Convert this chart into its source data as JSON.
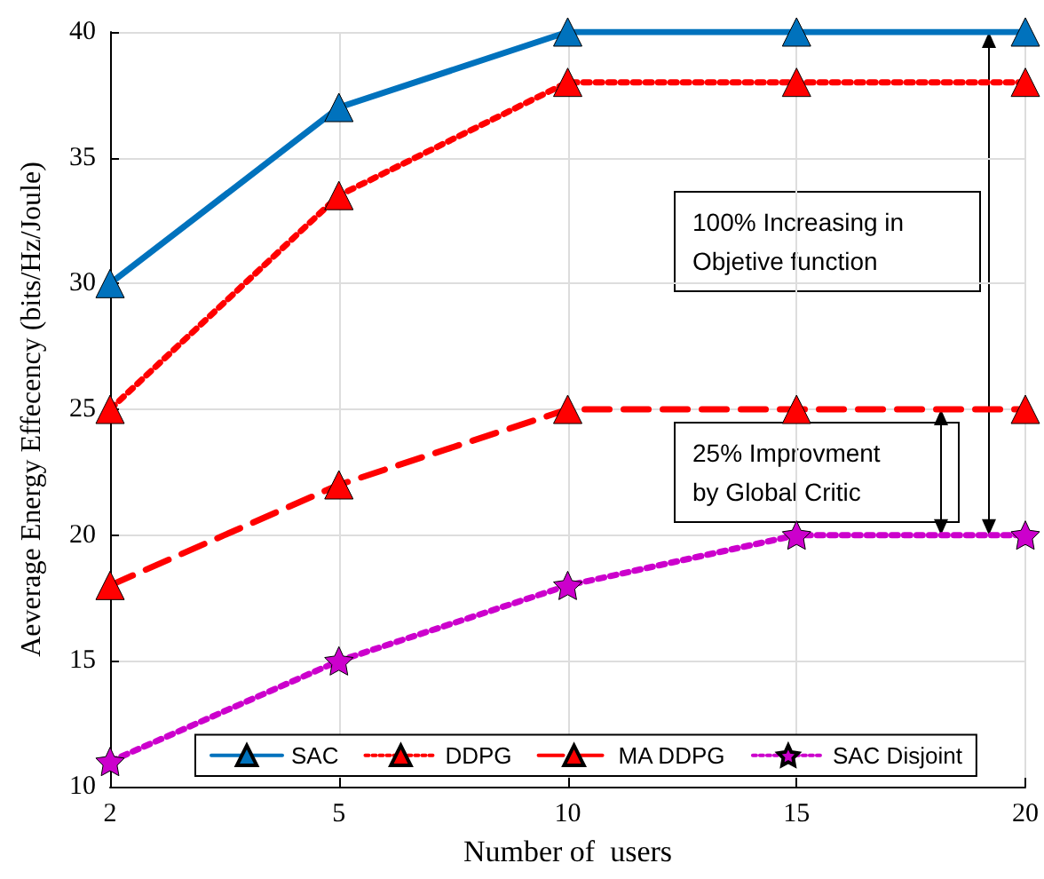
{
  "chart_data": {
    "type": "line",
    "xlabel": "Number of  users",
    "ylabel": "Aeverage Energy Effecency (bits/Hz/Joule)",
    "categories": [
      "2",
      "5",
      "10",
      "15",
      "20"
    ],
    "ylim": [
      10,
      40
    ],
    "yticks": [
      10,
      15,
      20,
      25,
      30,
      35,
      40
    ],
    "grid": true,
    "legend": "bottom",
    "series": [
      {
        "name": "SAC",
        "color": "#0072bd",
        "line_style": "solid",
        "marker": "triangle",
        "values": [
          30,
          37,
          40,
          40,
          40
        ]
      },
      {
        "name": "DDPG",
        "color": "#ff0000",
        "line_style": "dotted",
        "marker": "triangle",
        "values": [
          25,
          33.5,
          38,
          38,
          38
        ]
      },
      {
        "name": "MA DDPG",
        "color": "#ff0000",
        "line_style": "dashed",
        "marker": "triangle",
        "values": [
          18,
          22,
          25,
          25,
          25
        ]
      },
      {
        "name": "SAC Disjoint",
        "color": "#cc00cc",
        "line_style": "dotted",
        "marker": "star",
        "values": [
          11,
          15,
          18,
          20,
          20
        ]
      }
    ],
    "annotations": [
      "100% Increasing in Objetive function",
      "25% Improvment by Global Critic"
    ]
  }
}
